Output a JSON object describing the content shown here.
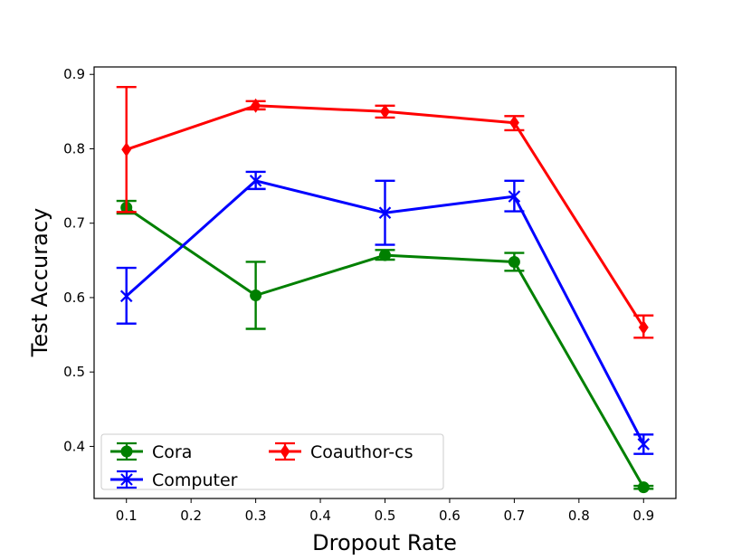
{
  "chart_data": {
    "type": "line",
    "xlabel": "Dropout Rate",
    "ylabel": "Test Accuracy",
    "xlim": [
      0.05,
      0.95
    ],
    "ylim": [
      0.33,
      0.91
    ],
    "xticks": [
      "0.1",
      "0.2",
      "0.3",
      "0.4",
      "0.5",
      "0.6",
      "0.7",
      "0.8",
      "0.9"
    ],
    "yticks": [
      "0.4",
      "0.5",
      "0.6",
      "0.7",
      "0.8",
      "0.9"
    ],
    "legend_position": "lower-left",
    "series": [
      {
        "name": "Cora",
        "color": "#008000",
        "marker": "circle",
        "x": [
          0.1,
          0.3,
          0.5,
          0.7,
          0.9
        ],
        "values": [
          0.721,
          0.603,
          0.657,
          0.648,
          0.345
        ],
        "error_low": [
          0.713,
          0.558,
          0.651,
          0.636,
          0.343
        ],
        "error_high": [
          0.73,
          0.648,
          0.664,
          0.66,
          0.347
        ]
      },
      {
        "name": "Computer",
        "color": "#0000ff",
        "marker": "x",
        "x": [
          0.1,
          0.3,
          0.5,
          0.7,
          0.9
        ],
        "values": [
          0.602,
          0.757,
          0.714,
          0.736,
          0.403
        ],
        "error_low": [
          0.565,
          0.746,
          0.671,
          0.716,
          0.39
        ],
        "error_high": [
          0.64,
          0.769,
          0.757,
          0.757,
          0.416
        ]
      },
      {
        "name": "Coauthor-cs",
        "color": "#ff0000",
        "marker": "diamond",
        "x": [
          0.1,
          0.3,
          0.5,
          0.7,
          0.9
        ],
        "values": [
          0.799,
          0.858,
          0.85,
          0.835,
          0.56
        ],
        "error_low": [
          0.715,
          0.853,
          0.842,
          0.825,
          0.546
        ],
        "error_high": [
          0.883,
          0.864,
          0.858,
          0.844,
          0.576
        ]
      }
    ]
  }
}
